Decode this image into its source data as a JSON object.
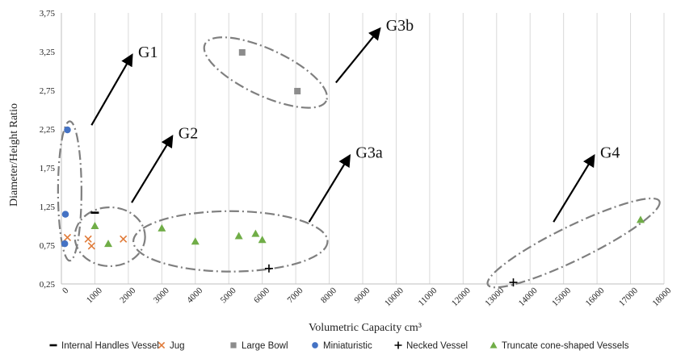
{
  "chart_data": {
    "type": "scatter",
    "xlabel": "Volumetric Capacity cm³",
    "ylabel": "Diameter/Height Ratio",
    "xlim": [
      0,
      18000
    ],
    "ylim": [
      0.25,
      3.75
    ],
    "x_ticks": [
      "0",
      "1000",
      "2000",
      "3000",
      "4000",
      "5000",
      "6000",
      "7000",
      "8000",
      "9000",
      "10000",
      "11000",
      "12000",
      "13000",
      "14000",
      "15000",
      "16000",
      "17000",
      "18000"
    ],
    "y_ticks": [
      "0,25",
      "0,75",
      "1,25",
      "1,75",
      "2,25",
      "2,75",
      "3,25",
      "3,75"
    ],
    "grid": "vertical",
    "legend_position": "bottom",
    "series": [
      {
        "name": "Internal Handles Vessel",
        "marker": "dash",
        "color": "#000000",
        "points": [
          [
            1000,
            1.17
          ]
        ]
      },
      {
        "name": "Jug",
        "marker": "x",
        "color": "#e07b39",
        "points": [
          [
            180,
            0.85
          ],
          [
            800,
            0.83
          ],
          [
            900,
            0.74
          ],
          [
            1850,
            0.83
          ]
        ]
      },
      {
        "name": "Large Bowl",
        "marker": "square",
        "color": "#8c8c8c",
        "points": [
          [
            5400,
            3.24
          ],
          [
            7050,
            2.74
          ]
        ]
      },
      {
        "name": "Miniaturistic",
        "marker": "circle",
        "color": "#4472c4",
        "points": [
          [
            180,
            2.24
          ],
          [
            120,
            1.15
          ],
          [
            100,
            0.77
          ]
        ]
      },
      {
        "name": "Necked Vessel",
        "marker": "plus",
        "color": "#000000",
        "points": [
          [
            6200,
            0.45
          ],
          [
            13500,
            0.27
          ]
        ]
      },
      {
        "name": "Truncate cone-shaped Vessels",
        "marker": "triangle",
        "color": "#70ad47",
        "points": [
          [
            1000,
            1.0
          ],
          [
            1400,
            0.77
          ],
          [
            3000,
            0.97
          ],
          [
            4000,
            0.8
          ],
          [
            5300,
            0.87
          ],
          [
            5800,
            0.9
          ],
          [
            6000,
            0.82
          ],
          [
            17300,
            1.08
          ]
        ]
      }
    ],
    "annotations": [
      {
        "label": "G1",
        "ellipse": {
          "cx": 250,
          "cy": 1.45,
          "rx": 350,
          "ry": 0.9,
          "rot": 0
        },
        "arrow": {
          "from": [
            900,
            2.3
          ],
          "to": [
            2100,
            3.2
          ]
        }
      },
      {
        "label": "G2",
        "ellipse": {
          "cx": 1450,
          "cy": 0.86,
          "rx": 1050,
          "ry": 0.38,
          "rot": 0
        },
        "arrow": {
          "from": [
            2100,
            1.3
          ],
          "to": [
            3300,
            2.15
          ]
        }
      },
      {
        "label": "G3a",
        "ellipse": {
          "cx": 5050,
          "cy": 0.8,
          "rx": 2900,
          "ry": 0.39,
          "rot": 0
        },
        "arrow": {
          "from": [
            7400,
            1.05
          ],
          "to": [
            8600,
            1.9
          ]
        }
      },
      {
        "label": "G3b",
        "ellipse": {
          "cx": 6100,
          "cy": 2.98,
          "rx": 2000,
          "ry": 0.3,
          "rot": 25
        },
        "arrow": {
          "from": [
            8200,
            2.85
          ],
          "to": [
            9500,
            3.54
          ]
        }
      },
      {
        "label": "G4",
        "ellipse": {
          "cx": 15300,
          "cy": 0.78,
          "rx": 2850,
          "ry": 0.22,
          "rot": -26
        },
        "arrow": {
          "from": [
            14700,
            1.05
          ],
          "to": [
            15900,
            1.9
          ]
        }
      }
    ]
  }
}
